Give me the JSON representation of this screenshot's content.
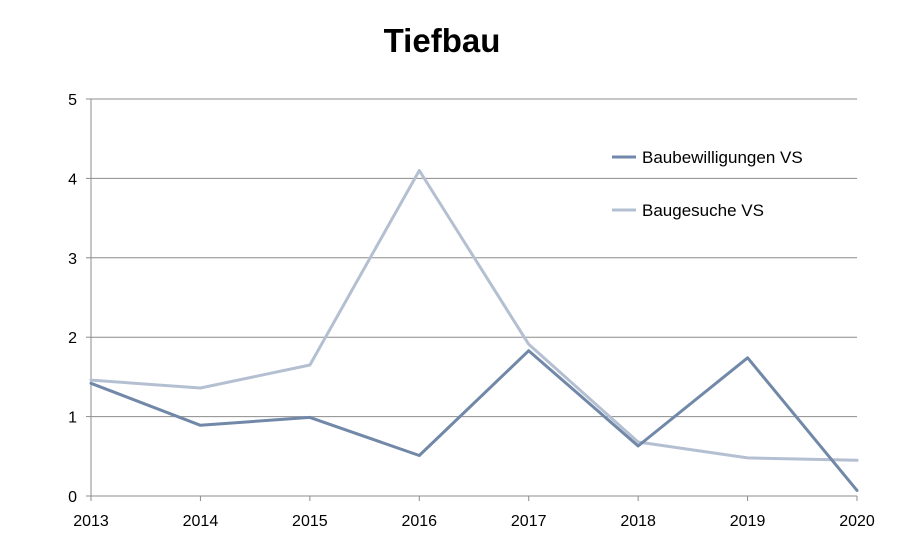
{
  "chart_data": {
    "type": "line",
    "title": "Tiefbau",
    "xlabel": "",
    "ylabel": "",
    "categories": [
      "2013",
      "2014",
      "2015",
      "2016",
      "2017",
      "2018",
      "2019",
      "2020"
    ],
    "ylim": [
      0,
      5
    ],
    "yticks": [
      "0",
      "1",
      "2",
      "3",
      "4",
      "5"
    ],
    "grid": true,
    "legend_position": "top-right",
    "series": [
      {
        "name": "Baubewilligungen VS",
        "color": "#7188a8",
        "values": [
          1.42,
          0.89,
          0.99,
          0.51,
          1.83,
          0.63,
          1.74,
          0.07
        ]
      },
      {
        "name": "Baugesuche VS",
        "color": "#b4c0d2",
        "values": [
          1.46,
          1.36,
          1.65,
          4.1,
          1.91,
          0.68,
          0.48,
          0.45
        ]
      }
    ]
  }
}
